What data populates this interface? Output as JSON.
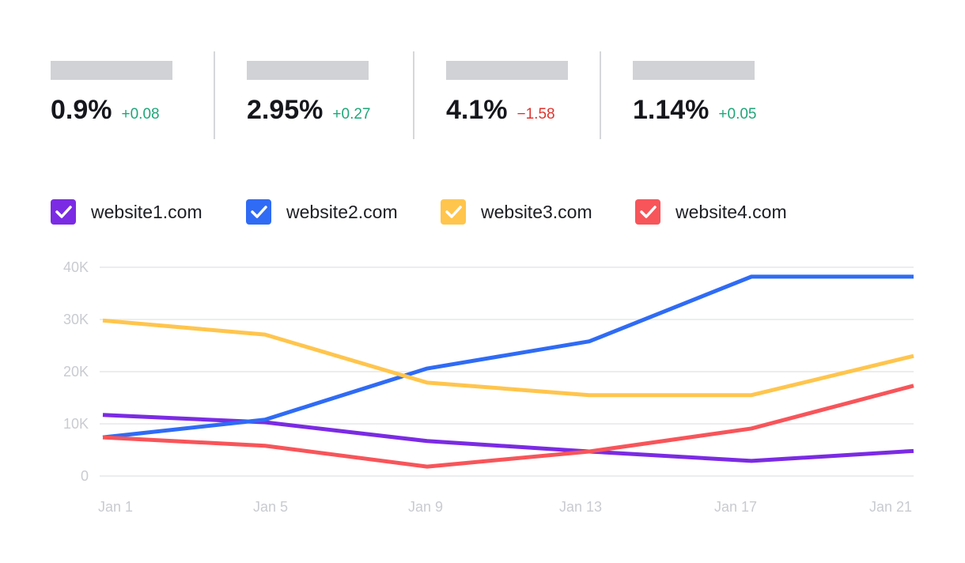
{
  "metrics": [
    {
      "value": "0.9%",
      "change": "+0.08",
      "change_color": "#1fa67a"
    },
    {
      "value": "2.95%",
      "change": "+0.27",
      "change_color": "#1fa67a"
    },
    {
      "value": "4.1%",
      "change": "−1.58",
      "change_color": "#e0332e"
    },
    {
      "value": "1.14%",
      "change": "+0.05",
      "change_color": "#1fa67a"
    }
  ],
  "chart_data": {
    "type": "line",
    "categories": [
      "Jan 1",
      "Jan 5",
      "Jan 9",
      "Jan 13",
      "Jan 17",
      "Jan 21"
    ],
    "series": [
      {
        "name": "website1.com",
        "color": "#7b2be3",
        "values": [
          11700,
          10300,
          6700,
          4700,
          2900,
          4800
        ]
      },
      {
        "name": "website2.com",
        "color": "#2f6bf5",
        "values": [
          7400,
          10800,
          20600,
          25800,
          38200,
          38200
        ]
      },
      {
        "name": "website3.com",
        "color": "#ffc54d",
        "values": [
          29800,
          27100,
          17900,
          15500,
          15500,
          23000
        ]
      },
      {
        "name": "website4.com",
        "color": "#f7555a",
        "values": [
          7400,
          5800,
          1800,
          4700,
          9100,
          17300
        ]
      }
    ],
    "ylim": [
      0,
      40000
    ],
    "yticks": [
      0,
      {
        "value": 10000,
        "label": "10K"
      },
      {
        "value": 20000,
        "label": "20K"
      },
      {
        "value": 30000,
        "label": "30K"
      },
      {
        "value": 40000,
        "label": "40K"
      }
    ],
    "grid": true
  }
}
